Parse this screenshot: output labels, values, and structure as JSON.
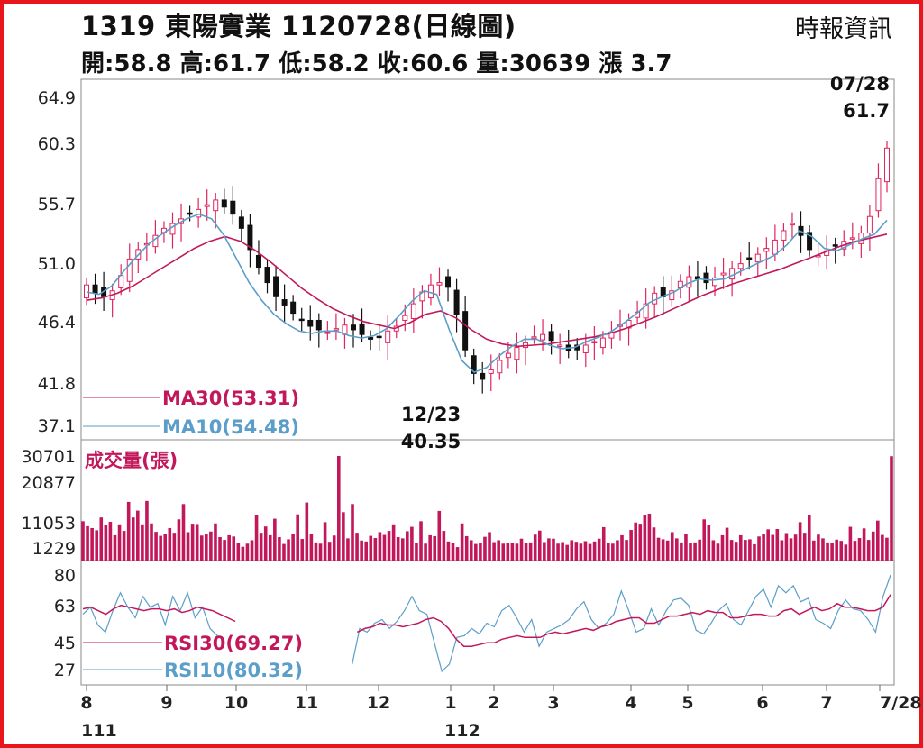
{
  "header": {
    "title": "1319  東陽實業 1120728(日線圖)",
    "stats": "開:58.8 高:61.7 低:58.2 收:60.6 量:30639 漲 3.7",
    "source": "時報資訊"
  },
  "colors": {
    "frame": "#e8161c",
    "candle_up": "#e0245e",
    "candle_down": "#111111",
    "ma30": "#c2185b",
    "ma10": "#5a9ec9",
    "volume": "#c2185b",
    "rsi30": "#c2185b",
    "rsi10": "#5a9ec9"
  },
  "chart_data": [
    {
      "type": "candlestick",
      "name": "price",
      "y_ticks": [
        "64.9",
        "60.3",
        "55.7",
        "51.0",
        "46.4",
        "41.8",
        "37.1"
      ],
      "ylim": [
        37.1,
        64.9
      ],
      "x_month_labels": [
        "8",
        "9",
        "10",
        "11",
        "12",
        "1",
        "2",
        "3",
        "4",
        "5",
        "6",
        "7",
        "7/28"
      ],
      "x_year_labels": [
        "111",
        "112"
      ],
      "annotations": [
        {
          "date": "07/28",
          "value": "61.7",
          "text_top": "07/28",
          "text_bottom": "61.7"
        },
        {
          "date": "12/23",
          "value": "40.35",
          "text_top": "12/23",
          "text_bottom": "40.35"
        }
      ],
      "legend": [
        {
          "label": "MA30(53.31)",
          "value": 53.31
        },
        {
          "label": "MA10(54.48)",
          "value": 54.48
        }
      ],
      "close_approx": [
        49.0,
        48.3,
        48.0,
        48.5,
        49.8,
        51.2,
        52.0,
        52.5,
        53.2,
        53.8,
        54.2,
        54.6,
        55.0,
        55.4,
        55.8,
        56.2,
        55.6,
        55.0,
        53.8,
        52.0,
        50.5,
        49.2,
        48.0,
        47.3,
        46.6,
        46.0,
        45.5,
        45.2,
        45.0,
        45.3,
        45.6,
        45.2,
        44.8,
        44.4,
        44.6,
        45.1,
        45.5,
        46.4,
        47.4,
        48.4,
        49.0,
        49.2,
        48.8,
        46.5,
        43.5,
        41.5,
        41.0,
        41.8,
        42.6,
        43.2,
        43.7,
        44.1,
        44.6,
        44.8,
        44.3,
        43.9,
        43.4,
        43.5,
        43.9,
        44.2,
        44.5,
        45.0,
        45.6,
        46.0,
        46.7,
        47.4,
        48.3,
        48.0,
        48.5,
        49.3,
        49.7,
        49.5,
        49.2,
        49.6,
        50.0,
        50.4,
        50.8,
        51.2,
        51.6,
        52.1,
        52.8,
        53.6,
        54.2,
        53.2,
        52.0,
        51.5,
        51.9,
        52.3,
        52.7,
        53.0,
        53.4,
        54.8,
        58.0,
        60.6
      ],
      "ma30_approx": [
        47.7,
        47.9,
        48.3,
        48.9,
        49.7,
        50.5,
        51.3,
        52.1,
        52.7,
        53.1,
        52.7,
        51.9,
        50.9,
        49.8,
        48.7,
        47.8,
        47.0,
        46.4,
        45.9,
        45.6,
        45.3,
        45.8,
        46.5,
        46.8,
        46.2,
        45.2,
        44.4,
        44.0,
        43.8,
        43.9,
        44.0,
        44.2,
        44.4,
        44.6,
        44.9,
        45.3,
        45.8,
        46.3,
        46.9,
        47.5,
        48.1,
        48.6,
        49.1,
        49.5,
        49.9,
        50.3,
        50.8,
        51.3,
        51.8,
        52.3,
        52.7,
        53.0,
        53.31
      ],
      "ma10_approx": [
        48.4,
        48.2,
        48.9,
        50.2,
        51.4,
        52.5,
        53.3,
        54.0,
        54.6,
        55.0,
        54.6,
        53.2,
        51.2,
        49.2,
        47.7,
        46.5,
        45.7,
        45.1,
        44.9,
        45.1,
        45.1,
        44.7,
        44.5,
        44.7,
        45.3,
        46.4,
        47.6,
        48.5,
        48.2,
        45.2,
        42.6,
        41.6,
        42.0,
        43.0,
        43.8,
        44.4,
        44.4,
        43.9,
        43.6,
        43.7,
        44.2,
        44.6,
        45.1,
        45.8,
        46.6,
        47.5,
        48.0,
        48.4,
        49.1,
        49.5,
        49.4,
        49.5,
        50.0,
        50.5,
        51.0,
        51.5,
        52.4,
        53.6,
        53.1,
        52.1,
        51.9,
        52.4,
        52.9,
        53.3,
        54.48
      ]
    },
    {
      "type": "bar",
      "name": "volume",
      "title": "成交量(張)",
      "y_ticks": [
        "30701",
        "20877",
        "11053",
        "1229"
      ],
      "ylim": [
        1229,
        30701
      ],
      "values_approx": [
        9800,
        8200,
        7600,
        6900,
        11000,
        8700,
        9600,
        5300,
        8800,
        6700,
        16000,
        11000,
        13200,
        8800,
        16300,
        9100,
        6400,
        5100,
        5700,
        7600,
        6100,
        10400,
        15300,
        6300,
        9000,
        8900,
        5200,
        5600,
        6500,
        9100,
        4700,
        3800,
        5300,
        4900,
        2800,
        1600,
        2600,
        3700,
        11900,
        6100,
        8100,
        5300,
        10600,
        4700,
        2500,
        4000,
        5800,
        12000,
        4100,
        15800,
        5600,
        3000,
        2600,
        9500,
        3200,
        5200,
        30701,
        12700,
        4300,
        15300,
        6100,
        3600,
        3300,
        5100,
        4400,
        6300,
        5400,
        6700,
        8800,
        4700,
        4300,
        6600,
        8000,
        2800,
        9800,
        2600,
        5300,
        5000,
        13100,
        6700,
        3300,
        2800,
        1500,
        9100,
        5000,
        3700,
        2500,
        2900,
        4800,
        6300,
        3100,
        3700,
        2600,
        2900,
        2700,
        2600,
        4200,
        2900,
        3000,
        5500,
        6800,
        3100,
        4300,
        4200,
        2600,
        3100,
        2200,
        3700,
        3200,
        2600,
        3400,
        2500,
        3300,
        4200,
        7900,
        2700,
        2600,
        3700,
        5300,
        3800,
        7000,
        9400,
        9000,
        11800,
        12200,
        7800,
        4500,
        4000,
        3600,
        6300,
        4300,
        3000,
        5800,
        2900,
        3000,
        3900,
        10400,
        8600,
        3700,
        2600,
        5300,
        7700,
        3800,
        3200,
        5300,
        3800,
        4000,
        2400,
        4900,
        5800,
        7200,
        5400,
        7300,
        3700,
        6000,
        4300,
        5500,
        9500,
        6100,
        11800,
        3600,
        5500,
        4300,
        3000,
        2800,
        3900,
        3500,
        2300,
        8000,
        3500,
        4400,
        7500,
        3800,
        6500,
        10000,
        5400,
        4500,
        30639
      ]
    },
    {
      "type": "line",
      "name": "rsi",
      "y_ticks": [
        "80",
        "63",
        "45",
        "27"
      ],
      "ylim": [
        27,
        80
      ],
      "legend": [
        {
          "label": "RSI30(69.27)",
          "value": 69.27
        },
        {
          "label": "RSI10(80.32)",
          "value": 80.32
        }
      ],
      "rsi30_approx": [
        61,
        62,
        60,
        58,
        61,
        63,
        62,
        61,
        60,
        61,
        61,
        60,
        61,
        59,
        60,
        62,
        61,
        60,
        58,
        56,
        54,
        null,
        null,
        null,
        null,
        null,
        null,
        null,
        null,
        null,
        null,
        null,
        null,
        null,
        null,
        null,
        48,
        50,
        51,
        53,
        52,
        52,
        51,
        52,
        53,
        55,
        56,
        54,
        50,
        44,
        40,
        40,
        41,
        42,
        42,
        44,
        45,
        46,
        45,
        45,
        45,
        47,
        48,
        47,
        48,
        49,
        50,
        49,
        51,
        52,
        54,
        55,
        56,
        56,
        53,
        53,
        55,
        57,
        57,
        58,
        59,
        58,
        60,
        59,
        59,
        56,
        56,
        57,
        58,
        58,
        57,
        57,
        60,
        61,
        58,
        60,
        62,
        60,
        61,
        64,
        62,
        62,
        61,
        60,
        60,
        62,
        69
      ],
      "rsi10_approx": [
        58,
        62,
        52,
        48,
        60,
        70,
        62,
        56,
        68,
        62,
        64,
        52,
        68,
        60,
        70,
        56,
        62,
        50,
        46,
        null,
        null,
        null,
        null,
        null,
        null,
        null,
        null,
        null,
        null,
        null,
        null,
        null,
        null,
        null,
        null,
        null,
        30,
        50,
        48,
        53,
        55,
        50,
        54,
        60,
        68,
        60,
        58,
        42,
        26,
        30,
        45,
        46,
        50,
        47,
        53,
        51,
        60,
        63,
        56,
        48,
        55,
        40,
        48,
        50,
        52,
        55,
        61,
        65,
        55,
        50,
        53,
        58,
        71,
        60,
        48,
        50,
        61,
        52,
        60,
        66,
        67,
        63,
        49,
        47,
        53,
        60,
        64,
        55,
        52,
        60,
        68,
        72,
        62,
        74,
        70,
        74,
        65,
        67,
        55,
        53,
        50,
        60,
        66,
        61,
        60,
        55,
        48,
        68,
        80
      ]
    }
  ]
}
